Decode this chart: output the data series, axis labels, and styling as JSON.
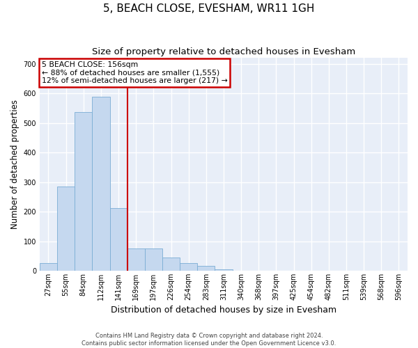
{
  "title": "5, BEACH CLOSE, EVESHAM, WR11 1GH",
  "subtitle": "Size of property relative to detached houses in Evesham",
  "xlabel": "Distribution of detached houses by size in Evesham",
  "ylabel": "Number of detached properties",
  "bar_color": "#c5d8ef",
  "bar_edge_color": "#7aadd4",
  "background_color": "#e8eef8",
  "grid_color": "#ffffff",
  "annotation_box_color": "#cc0000",
  "vline_color": "#cc0000",
  "annotation_text": "5 BEACH CLOSE: 156sqm\n← 88% of detached houses are smaller (1,555)\n12% of semi-detached houses are larger (217) →",
  "categories": [
    "27sqm",
    "55sqm",
    "84sqm",
    "112sqm",
    "141sqm",
    "169sqm",
    "197sqm",
    "226sqm",
    "254sqm",
    "283sqm",
    "311sqm",
    "340sqm",
    "368sqm",
    "397sqm",
    "425sqm",
    "454sqm",
    "482sqm",
    "511sqm",
    "539sqm",
    "568sqm",
    "596sqm"
  ],
  "bar_heights": [
    27,
    284,
    537,
    589,
    213,
    76,
    76,
    44,
    27,
    16,
    5,
    0,
    0,
    0,
    0,
    0,
    0,
    0,
    0,
    0,
    0
  ],
  "vline_index": 4.5,
  "ylim": [
    0,
    720
  ],
  "yticks": [
    0,
    100,
    200,
    300,
    400,
    500,
    600,
    700
  ],
  "footer": "Contains HM Land Registry data © Crown copyright and database right 2024.\nContains public sector information licensed under the Open Government Licence v3.0.",
  "title_fontsize": 11,
  "subtitle_fontsize": 9.5,
  "tick_fontsize": 7,
  "ylabel_fontsize": 8.5,
  "xlabel_fontsize": 9
}
